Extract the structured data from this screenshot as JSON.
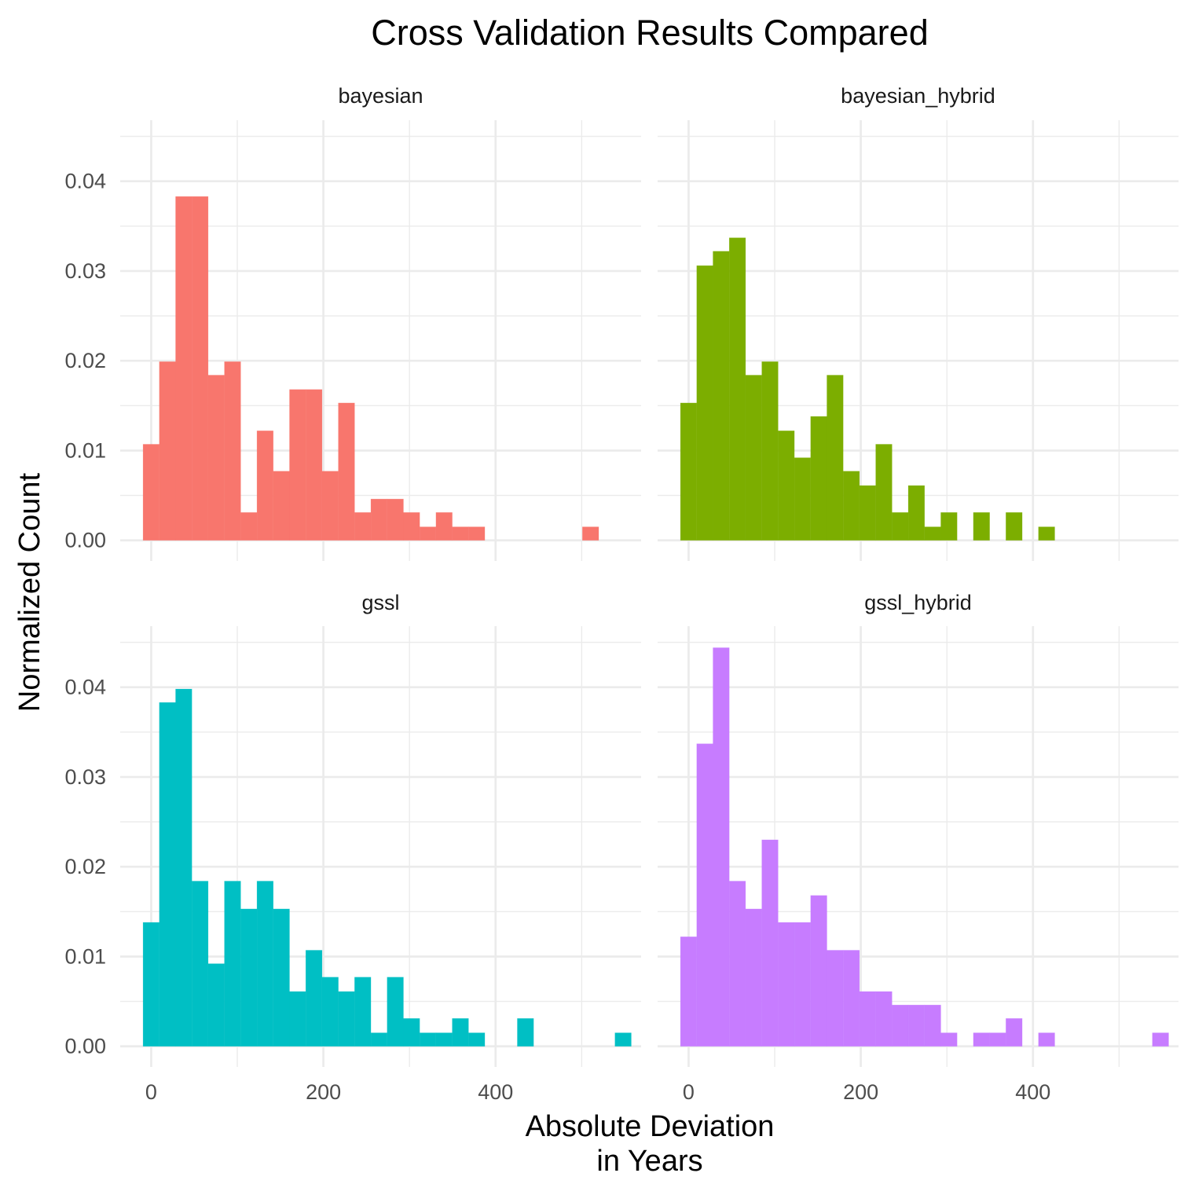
{
  "chart_data": {
    "type": "bar",
    "title": "Cross Validation Results Compared",
    "xlabel_lines": [
      "Absolute Deviation",
      "in Years"
    ],
    "ylabel": "Normalized Count",
    "xlim": [
      -36,
      569
    ],
    "ylim": [
      -0.0023,
      0.0468
    ],
    "x_ticks": [
      0,
      200,
      400
    ],
    "y_ticks": [
      0,
      0.01,
      0.02,
      0.03,
      0.04
    ],
    "y_tick_labels": [
      "0.00",
      "0.01",
      "0.02",
      "0.03",
      "0.04"
    ],
    "bin_width": 18.9,
    "grid": true,
    "legend": "none",
    "facets": [
      {
        "name": "bayesian",
        "color": "#F8766D",
        "bins": [
          {
            "x0": -9.45,
            "v": 0.0107
          },
          {
            "x0": 9.45,
            "v": 0.0199
          },
          {
            "x0": 28.35,
            "v": 0.0383
          },
          {
            "x0": 47.25,
            "v": 0.0383
          },
          {
            "x0": 66.15,
            "v": 0.0184
          },
          {
            "x0": 85.05,
            "v": 0.0199
          },
          {
            "x0": 103.95,
            "v": 0.0031
          },
          {
            "x0": 122.85,
            "v": 0.0122
          },
          {
            "x0": 141.75,
            "v": 0.0077
          },
          {
            "x0": 160.65,
            "v": 0.0168
          },
          {
            "x0": 179.55,
            "v": 0.0168
          },
          {
            "x0": 198.45,
            "v": 0.0077
          },
          {
            "x0": 217.35,
            "v": 0.0153
          },
          {
            "x0": 236.25,
            "v": 0.0031
          },
          {
            "x0": 255.15,
            "v": 0.0046
          },
          {
            "x0": 274.05,
            "v": 0.0046
          },
          {
            "x0": 292.95,
            "v": 0.0031
          },
          {
            "x0": 311.85,
            "v": 0.0015
          },
          {
            "x0": 330.75,
            "v": 0.0031
          },
          {
            "x0": 349.65,
            "v": 0.0015
          },
          {
            "x0": 368.55,
            "v": 0.0015
          },
          {
            "x0": 500.85,
            "v": 0.0015
          }
        ]
      },
      {
        "name": "bayesian_hybrid",
        "color": "#7CAE00",
        "bins": [
          {
            "x0": -9.45,
            "v": 0.0153
          },
          {
            "x0": 9.45,
            "v": 0.0306
          },
          {
            "x0": 28.35,
            "v": 0.0322
          },
          {
            "x0": 47.25,
            "v": 0.0337
          },
          {
            "x0": 66.15,
            "v": 0.0184
          },
          {
            "x0": 85.05,
            "v": 0.0199
          },
          {
            "x0": 103.95,
            "v": 0.0122
          },
          {
            "x0": 122.85,
            "v": 0.0092
          },
          {
            "x0": 141.75,
            "v": 0.0138
          },
          {
            "x0": 160.65,
            "v": 0.0184
          },
          {
            "x0": 179.55,
            "v": 0.0077
          },
          {
            "x0": 198.45,
            "v": 0.0061
          },
          {
            "x0": 217.35,
            "v": 0.0107
          },
          {
            "x0": 236.25,
            "v": 0.0031
          },
          {
            "x0": 255.15,
            "v": 0.0061
          },
          {
            "x0": 274.05,
            "v": 0.0015
          },
          {
            "x0": 292.95,
            "v": 0.0031
          },
          {
            "x0": 330.75,
            "v": 0.0031
          },
          {
            "x0": 368.55,
            "v": 0.0031
          },
          {
            "x0": 406.35,
            "v": 0.0015
          }
        ]
      },
      {
        "name": "gssl",
        "color": "#00BFC4",
        "bins": [
          {
            "x0": -9.45,
            "v": 0.0138
          },
          {
            "x0": 9.45,
            "v": 0.0383
          },
          {
            "x0": 28.35,
            "v": 0.0398
          },
          {
            "x0": 47.25,
            "v": 0.0184
          },
          {
            "x0": 66.15,
            "v": 0.0092
          },
          {
            "x0": 85.05,
            "v": 0.0184
          },
          {
            "x0": 103.95,
            "v": 0.0153
          },
          {
            "x0": 122.85,
            "v": 0.0184
          },
          {
            "x0": 141.75,
            "v": 0.0153
          },
          {
            "x0": 160.65,
            "v": 0.0061
          },
          {
            "x0": 179.55,
            "v": 0.0107
          },
          {
            "x0": 198.45,
            "v": 0.0077
          },
          {
            "x0": 217.35,
            "v": 0.0061
          },
          {
            "x0": 236.25,
            "v": 0.0077
          },
          {
            "x0": 255.15,
            "v": 0.0015
          },
          {
            "x0": 274.05,
            "v": 0.0077
          },
          {
            "x0": 292.95,
            "v": 0.0031
          },
          {
            "x0": 311.85,
            "v": 0.0015
          },
          {
            "x0": 330.75,
            "v": 0.0015
          },
          {
            "x0": 349.65,
            "v": 0.0031
          },
          {
            "x0": 368.55,
            "v": 0.0015
          },
          {
            "x0": 425.25,
            "v": 0.0031
          },
          {
            "x0": 538.65,
            "v": 0.0015
          }
        ]
      },
      {
        "name": "gssl_hybrid",
        "color": "#C77CFF",
        "bins": [
          {
            "x0": -9.45,
            "v": 0.0122
          },
          {
            "x0": 9.45,
            "v": 0.0337
          },
          {
            "x0": 28.35,
            "v": 0.0444
          },
          {
            "x0": 47.25,
            "v": 0.0184
          },
          {
            "x0": 66.15,
            "v": 0.0153
          },
          {
            "x0": 85.05,
            "v": 0.023
          },
          {
            "x0": 103.95,
            "v": 0.0138
          },
          {
            "x0": 122.85,
            "v": 0.0138
          },
          {
            "x0": 141.75,
            "v": 0.0168
          },
          {
            "x0": 160.65,
            "v": 0.0107
          },
          {
            "x0": 179.55,
            "v": 0.0107
          },
          {
            "x0": 198.45,
            "v": 0.0061
          },
          {
            "x0": 217.35,
            "v": 0.0061
          },
          {
            "x0": 236.25,
            "v": 0.0046
          },
          {
            "x0": 255.15,
            "v": 0.0046
          },
          {
            "x0": 274.05,
            "v": 0.0046
          },
          {
            "x0": 292.95,
            "v": 0.0015
          },
          {
            "x0": 330.75,
            "v": 0.0015
          },
          {
            "x0": 349.65,
            "v": 0.0015
          },
          {
            "x0": 368.55,
            "v": 0.0031
          },
          {
            "x0": 406.35,
            "v": 0.0015
          },
          {
            "x0": 538.65,
            "v": 0.0015
          }
        ]
      }
    ]
  }
}
